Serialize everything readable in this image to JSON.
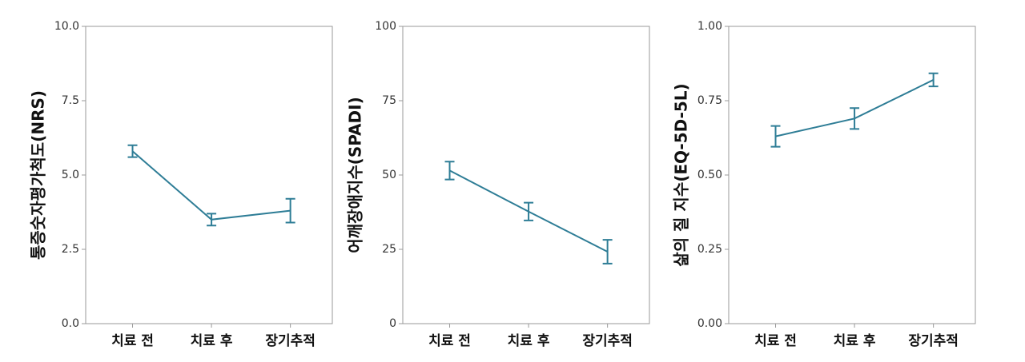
{
  "chart_data": [
    {
      "type": "line",
      "y_label": "통증숫자평가척도(NRS)",
      "categories": [
        "치료 전",
        "치료 후",
        "장기추적"
      ],
      "values": [
        5.8,
        3.5,
        3.8
      ],
      "errors": [
        0.2,
        0.2,
        0.4
      ],
      "color": "#2e7d96",
      "ylim": [
        0,
        10
      ],
      "yticks": [
        {
          "value": 0,
          "label": "0.0"
        },
        {
          "value": 2.5,
          "label": "2.5"
        },
        {
          "value": 5,
          "label": "5.0"
        },
        {
          "value": 7.5,
          "label": "7.5"
        },
        {
          "value": 10,
          "label": "10.0"
        }
      ]
    },
    {
      "type": "line",
      "y_label": "어깨장애지수(SPADI)",
      "categories": [
        "치료 전",
        "치료 후",
        "장기추적"
      ],
      "values": [
        51.5,
        37.7,
        24.2
      ],
      "errors": [
        3,
        3,
        4
      ],
      "color": "#2e7d96",
      "ylim": [
        0,
        100
      ],
      "yticks": [
        0,
        25,
        50,
        75,
        100
      ]
    },
    {
      "type": "line",
      "y_label": "삶의 질 지수(EQ-5D-5L)",
      "categories": [
        "치료 전",
        "치료 후",
        "장기추적"
      ],
      "values": [
        0.63,
        0.69,
        0.82
      ],
      "errors": [
        0.035,
        0.035,
        0.022
      ],
      "color": "#2e7d96",
      "ylim": [
        0,
        1
      ],
      "yticks": [
        {
          "value": 0,
          "label": "0.00"
        },
        {
          "value": 0.25,
          "label": "0.25"
        },
        {
          "value": 0.5,
          "label": "0.50"
        },
        {
          "value": 0.75,
          "label": "0.75"
        },
        {
          "value": 1,
          "label": "1.00"
        }
      ]
    }
  ]
}
